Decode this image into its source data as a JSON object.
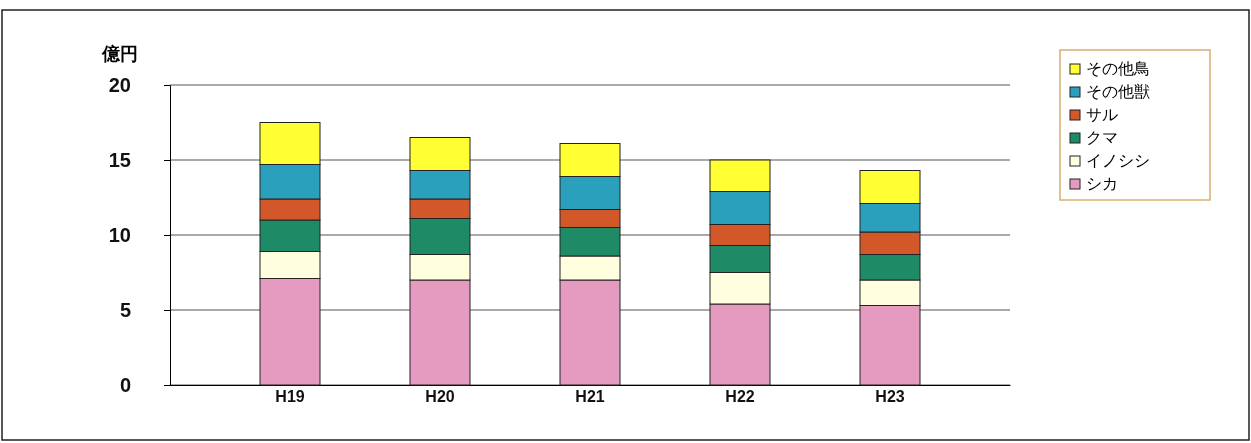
{
  "chart_data": {
    "type": "bar",
    "stacked": true,
    "ylabel": "億円",
    "categories": [
      "H19",
      "H20",
      "H21",
      "H22",
      "H23"
    ],
    "series": [
      {
        "name": "シカ",
        "color": "#e59bc0",
        "values": [
          7.1,
          7.0,
          7.0,
          5.4,
          5.3
        ]
      },
      {
        "name": "イノシシ",
        "color": "#ffffe0",
        "values": [
          1.8,
          1.7,
          1.6,
          2.1,
          1.7
        ]
      },
      {
        "name": "クマ",
        "color": "#1f8a66",
        "values": [
          2.1,
          2.4,
          1.9,
          1.8,
          1.7
        ]
      },
      {
        "name": "サル",
        "color": "#d2582a",
        "values": [
          1.4,
          1.3,
          1.2,
          1.4,
          1.5
        ]
      },
      {
        "name": "その他獣",
        "color": "#2aa0bc",
        "values": [
          2.3,
          1.9,
          2.2,
          2.2,
          1.9
        ]
      },
      {
        "name": "その他鳥",
        "color": "#ffff33",
        "values": [
          2.8,
          2.2,
          2.2,
          2.1,
          2.2
        ]
      }
    ],
    "ylim": [
      0,
      20
    ],
    "yticks": [
      0,
      5,
      10,
      15,
      20
    ],
    "grid": "y",
    "legend": "top right"
  }
}
